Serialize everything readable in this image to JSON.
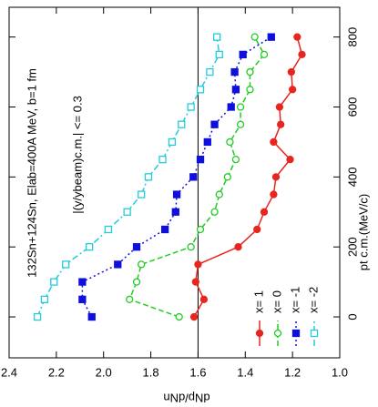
{
  "chart_data": {
    "type": "scatter",
    "annotations": [
      "132Sn+124Sn, Elab=400A MeV, b=1 fm",
      "|(y/ybeam)c.m.| <= 0.3"
    ],
    "x_label": "pt c.m.(MeV/c)",
    "y_label": "dNp/dNn",
    "x": [
      0,
      50,
      100,
      150,
      200,
      250,
      300,
      350,
      400,
      450,
      500,
      550,
      600,
      650,
      700,
      750,
      800
    ],
    "xlim": [
      -117,
      885
    ],
    "xticks": [
      0,
      200,
      400,
      600,
      800
    ],
    "ylim": [
      2.4,
      1.0
    ],
    "yticks": [
      {
        "value": 2.4,
        "label": "2.4"
      },
      {
        "value": 2.2,
        "label": "2.2"
      },
      {
        "value": 2.0,
        "label": "2.0"
      },
      {
        "value": 1.8,
        "label": "1.8"
      },
      {
        "value": 1.6,
        "label": "1.6"
      },
      {
        "value": 1.4,
        "label": "1.4"
      },
      {
        "value": 1.2,
        "label": "1.2"
      },
      {
        "value": 1.0,
        "label": "1.0"
      }
    ],
    "reference_line": 1.6,
    "legend": "lower right",
    "series": [
      {
        "name": "x= 1",
        "color": "#e8251e",
        "marker": "circle",
        "filled": true,
        "dash": "solid",
        "values": [
          1.617,
          1.575,
          1.61,
          1.6,
          1.43,
          1.35,
          1.32,
          1.28,
          1.27,
          1.21,
          1.28,
          1.25,
          1.255,
          1.2,
          1.205,
          1.16,
          1.18
        ]
      },
      {
        "name": "x= 0",
        "color": "#22cc22",
        "marker": "circle",
        "filled": false,
        "dash": "dashed",
        "values": [
          1.68,
          1.89,
          1.86,
          1.84,
          1.63,
          1.59,
          1.53,
          1.51,
          1.475,
          1.44,
          1.465,
          1.42,
          1.42,
          1.38,
          1.38,
          1.32,
          1.36
        ]
      },
      {
        "name": "x= -1",
        "color": "#1010dd",
        "marker": "square",
        "filled": true,
        "dash": "dotted",
        "values": [
          2.05,
          2.09,
          2.09,
          1.94,
          1.86,
          1.74,
          1.695,
          1.69,
          1.62,
          1.59,
          1.56,
          1.53,
          1.46,
          1.44,
          1.445,
          1.41,
          1.29
        ]
      },
      {
        "name": "x= -2",
        "color": "#22ccdd",
        "marker": "square",
        "filled": false,
        "dash": "dashdot",
        "values": [
          2.28,
          2.25,
          2.21,
          2.16,
          2.06,
          1.98,
          1.9,
          1.84,
          1.81,
          1.75,
          1.71,
          1.67,
          1.63,
          1.59,
          1.55,
          1.51,
          1.52
        ]
      }
    ]
  }
}
